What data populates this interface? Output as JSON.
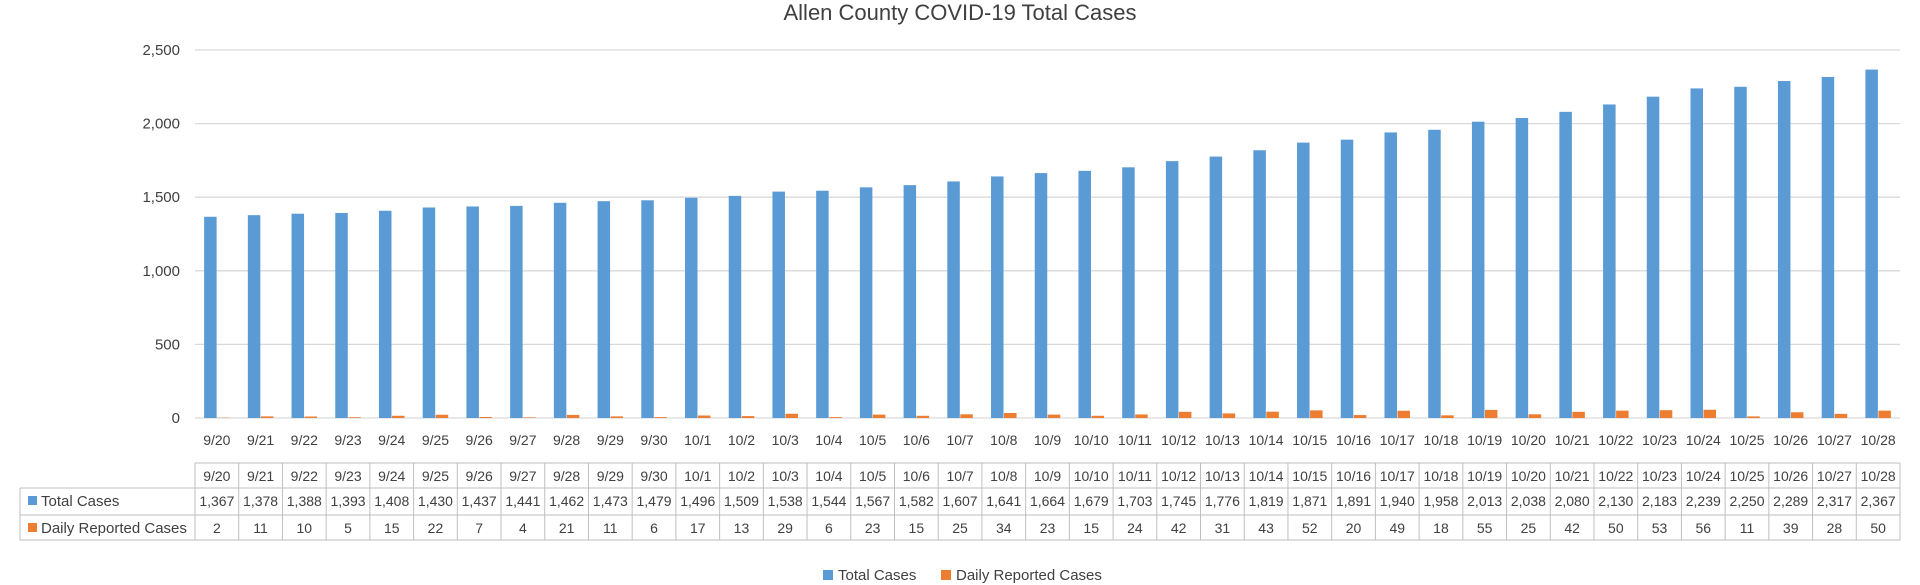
{
  "chart_data": {
    "type": "bar",
    "title": "Allen County COVID-19 Total Cases",
    "categories": [
      "9/20",
      "9/21",
      "9/22",
      "9/23",
      "9/24",
      "9/25",
      "9/26",
      "9/27",
      "9/28",
      "9/29",
      "9/30",
      "10/1",
      "10/2",
      "10/3",
      "10/4",
      "10/5",
      "10/6",
      "10/7",
      "10/8",
      "10/9",
      "10/10",
      "10/11",
      "10/12",
      "10/13",
      "10/14",
      "10/15",
      "10/16",
      "10/17",
      "10/18",
      "10/19",
      "10/20",
      "10/21",
      "10/22",
      "10/23",
      "10/24",
      "10/25",
      "10/26",
      "10/27",
      "10/28"
    ],
    "series": [
      {
        "name": "Total Cases",
        "color": "#5B9BD5",
        "values": [
          1367,
          1378,
          1388,
          1393,
          1408,
          1430,
          1437,
          1441,
          1462,
          1473,
          1479,
          1496,
          1509,
          1538,
          1544,
          1567,
          1582,
          1607,
          1641,
          1664,
          1679,
          1703,
          1745,
          1776,
          1819,
          1871,
          1891,
          1940,
          1958,
          2013,
          2038,
          2080,
          2130,
          2183,
          2239,
          2250,
          2289,
          2317,
          2367
        ],
        "labels": [
          "1,367",
          "1,378",
          "1,388",
          "1,393",
          "1,408",
          "1,430",
          "1,437",
          "1,441",
          "1,462",
          "1,473",
          "1,479",
          "1,496",
          "1,509",
          "1,538",
          "1,544",
          "1,567",
          "1,582",
          "1,607",
          "1,641",
          "1,664",
          "1,679",
          "1,703",
          "1,745",
          "1,776",
          "1,819",
          "1,871",
          "1,891",
          "1,940",
          "1,958",
          "2,013",
          "2,038",
          "2,080",
          "2,130",
          "2,183",
          "2,239",
          "2,250",
          "2,289",
          "2,317",
          "2,367"
        ]
      },
      {
        "name": "Daily Reported Cases",
        "color": "#ED7D31",
        "values": [
          2,
          11,
          10,
          5,
          15,
          22,
          7,
          4,
          21,
          11,
          6,
          17,
          13,
          29,
          6,
          23,
          15,
          25,
          34,
          23,
          15,
          24,
          42,
          31,
          43,
          52,
          20,
          49,
          18,
          55,
          25,
          42,
          50,
          53,
          56,
          11,
          39,
          28,
          50
        ],
        "labels": [
          "2",
          "11",
          "10",
          "5",
          "15",
          "22",
          "7",
          "4",
          "21",
          "11",
          "6",
          "17",
          "13",
          "29",
          "6",
          "23",
          "15",
          "25",
          "34",
          "23",
          "15",
          "24",
          "42",
          "31",
          "43",
          "52",
          "20",
          "49",
          "18",
          "55",
          "25",
          "42",
          "50",
          "53",
          "56",
          "11",
          "39",
          "28",
          "50"
        ]
      }
    ],
    "ylim": [
      0,
      2500
    ],
    "yticks": [
      0,
      500,
      1000,
      1500,
      2000,
      2500
    ],
    "ytick_labels": [
      "0",
      "500",
      "1,000",
      "1,500",
      "2,000",
      "2,500"
    ],
    "grid": true,
    "data_table": true,
    "legend": "bottom"
  }
}
